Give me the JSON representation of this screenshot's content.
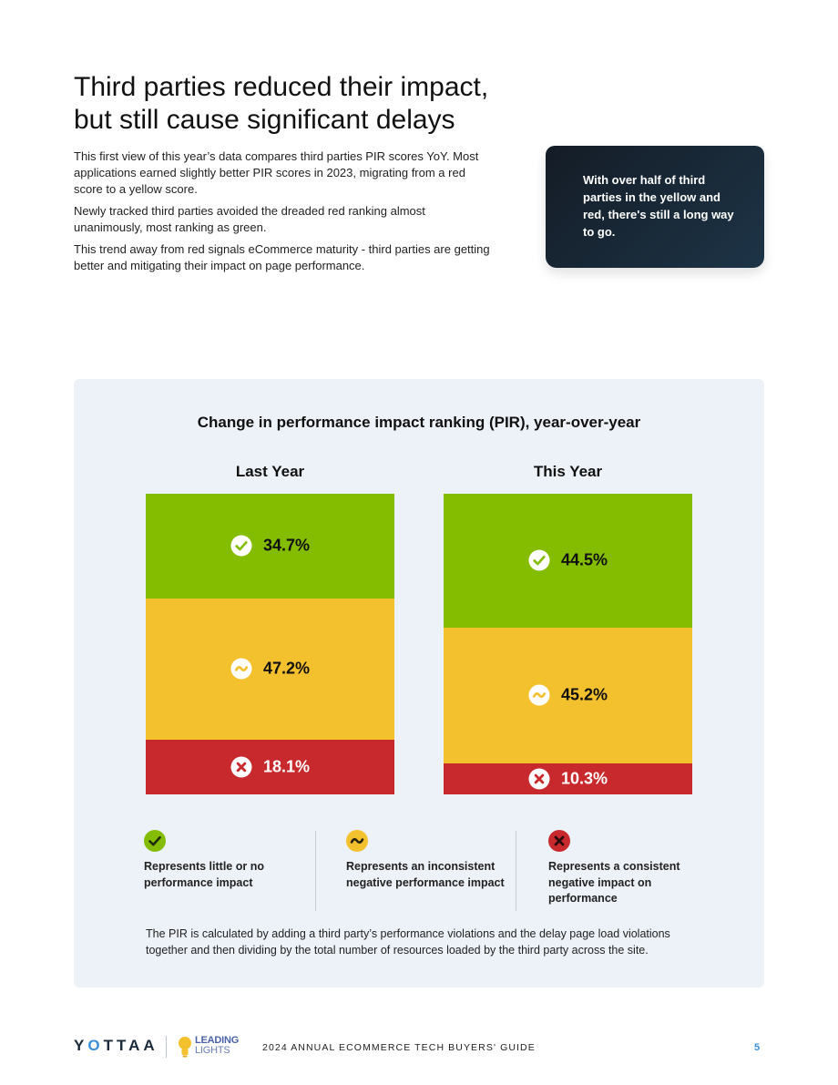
{
  "heading": {
    "line1": "Third parties reduced their impact,",
    "line2": "but still cause significant delays"
  },
  "intro": {
    "paragraphs": [
      "This first view of this year’s data compares third parties PIR scores YoY. Most applications earned slightly better PIR scores in 2023, migrating from a red score to a yellow score.",
      "Newly tracked third parties avoided the dreaded red ranking almost unanimously, most ranking as green.",
      "This trend away from red signals eCommerce maturity - third parties are getting better and mitigating their impact on page performance."
    ]
  },
  "callout": {
    "text": "With over half of third parties in the yellow and red, there's still a long way to go."
  },
  "chart_data": {
    "type": "bar",
    "stacked": true,
    "title": "Change in performance impact ranking (PIR), year-over-year",
    "categories": [
      "Last Year",
      "This Year"
    ],
    "series": [
      {
        "name": "Represents little or no performance impact",
        "values": [
          34.7,
          44.5
        ],
        "labels": [
          "34.7%",
          "44.5%"
        ],
        "color": "#84bd00",
        "icon": "check-icon"
      },
      {
        "name": "Represents an inconsistent negative performance impact",
        "values": [
          47.2,
          45.2
        ],
        "labels": [
          "47.2%",
          "45.2%"
        ],
        "color": "#f4c12e",
        "icon": "tilde-icon"
      },
      {
        "name": "Represents a consistent negative impact on performance",
        "values": [
          18.1,
          10.3
        ],
        "labels": [
          "18.1%",
          "10.3%"
        ],
        "color": "#c8292c",
        "icon": "x-icon"
      }
    ],
    "footnote": "The PIR is calculated by adding a third party’s performance violations and the delay page load violations together and then dividing by the total number of resources loaded by the third party across the site."
  },
  "footer": {
    "brand": "YOTTAA",
    "partner_line1": "LEADING",
    "partner_line2": "LIGHTS",
    "guide": "2024 ANNUAL ECOMMERCE TECH BUYERS' GUIDE",
    "page": "5"
  }
}
